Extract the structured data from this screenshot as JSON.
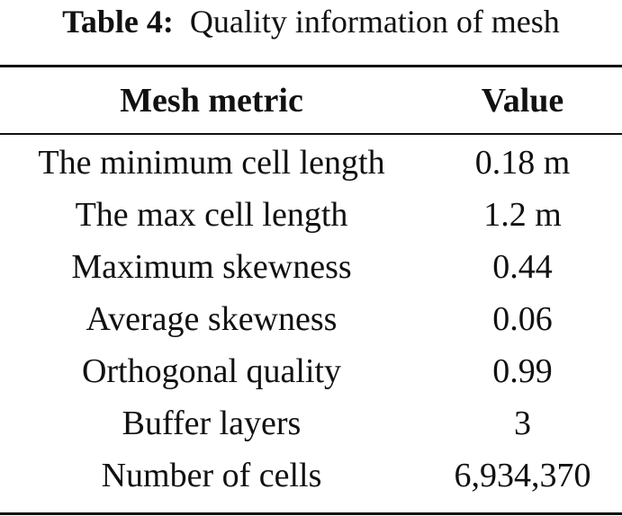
{
  "caption": {
    "label": "Table 4:",
    "text": "Quality information of mesh"
  },
  "table": {
    "headers": {
      "metric": "Mesh metric",
      "value": "Value"
    },
    "rows": [
      {
        "metric": "The minimum cell length",
        "value": "0.18 m"
      },
      {
        "metric": "The max cell length",
        "value": "1.2 m"
      },
      {
        "metric": "Maximum skewness",
        "value": "0.44"
      },
      {
        "metric": "Average skewness",
        "value": "0.06"
      },
      {
        "metric": "Orthogonal quality",
        "value": "0.99"
      },
      {
        "metric": "Buffer layers",
        "value": "3"
      },
      {
        "metric": "Number of cells",
        "value": "6,934,370"
      }
    ]
  }
}
